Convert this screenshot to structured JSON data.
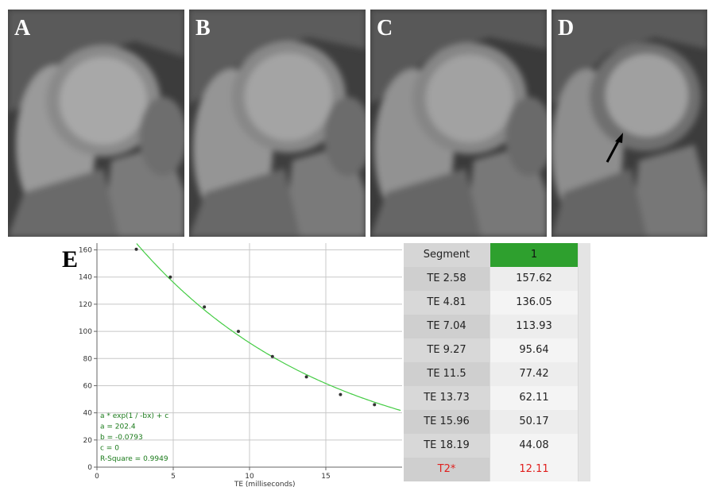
{
  "panels": [
    {
      "label": "A"
    },
    {
      "label": "B"
    },
    {
      "label": "C"
    },
    {
      "label": "D"
    }
  ],
  "e_label": "E",
  "chart_data": {
    "type": "scatter",
    "x": [
      2.58,
      4.81,
      7.04,
      9.27,
      11.5,
      13.73,
      15.96,
      18.19
    ],
    "y": [
      160.5,
      140,
      118,
      100,
      81.5,
      66.5,
      53.5,
      46
    ],
    "fit": {
      "a": 202.4,
      "b": -0.0793,
      "c": 0
    },
    "xlim": [
      0,
      20
    ],
    "ylim": [
      0,
      165
    ],
    "xticks": [
      0,
      5,
      10,
      15
    ],
    "yticks": [
      0,
      20,
      40,
      60,
      80,
      100,
      120,
      140,
      160
    ],
    "xlabel": "TE (milliseconds)",
    "ylabel": "",
    "grid": true,
    "annotation": [
      "a * exp(1 / -bx) + c",
      "a = 202.4",
      "b = -0.0793",
      "c = 0",
      "R-Square = 0.9949"
    ],
    "colors": {
      "fit": "#44cc44",
      "points": "#333333",
      "annotation": "#1a7a1a"
    }
  },
  "table": {
    "header": {
      "label": "Segment",
      "value": "1"
    },
    "rows": [
      {
        "label": "TE 2.58",
        "value": "157.62"
      },
      {
        "label": "TE 4.81",
        "value": "136.05"
      },
      {
        "label": "TE 7.04",
        "value": "113.93"
      },
      {
        "label": "TE 9.27",
        "value": "95.64"
      },
      {
        "label": "TE 11.5",
        "value": "77.42"
      },
      {
        "label": "TE 13.73",
        "value": "62.11"
      },
      {
        "label": "TE 15.96",
        "value": "50.17"
      },
      {
        "label": "TE 18.19",
        "value": "44.08"
      }
    ],
    "result": {
      "label": "T2*",
      "value": "12.11"
    },
    "colors": {
      "header_value_bg": "#2ea02e",
      "result_text": "#e0201e"
    }
  }
}
